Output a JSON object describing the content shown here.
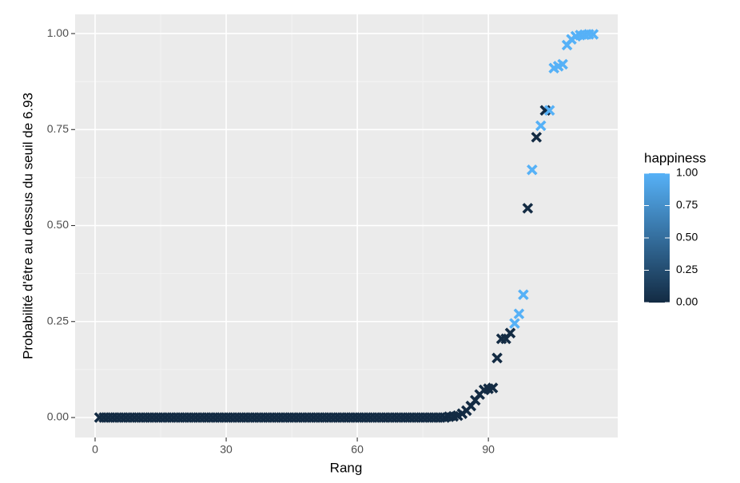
{
  "chart_data": {
    "type": "scatter",
    "x_label": "Rang",
    "y_label": "Probabilité d'être au dessus du seuil de 6.93",
    "legend_title": "happiness",
    "x": [
      1,
      2,
      3,
      4,
      5,
      6,
      7,
      8,
      9,
      10,
      11,
      12,
      13,
      14,
      15,
      16,
      17,
      18,
      19,
      20,
      21,
      22,
      23,
      24,
      25,
      26,
      27,
      28,
      29,
      30,
      31,
      32,
      33,
      34,
      35,
      36,
      37,
      38,
      39,
      40,
      41,
      42,
      43,
      44,
      45,
      46,
      47,
      48,
      49,
      50,
      51,
      52,
      53,
      54,
      55,
      56,
      57,
      58,
      59,
      60,
      61,
      62,
      63,
      64,
      65,
      66,
      67,
      68,
      69,
      70,
      71,
      72,
      73,
      74,
      75,
      76,
      77,
      78,
      79,
      80,
      81,
      82,
      83,
      84,
      85,
      86,
      87,
      88,
      89,
      90,
      91,
      92,
      93,
      94,
      95,
      96,
      97,
      98,
      99,
      100,
      101,
      102,
      103,
      104,
      105,
      106,
      107,
      108,
      109,
      110,
      111,
      112,
      113,
      114
    ],
    "values": [
      0,
      0,
      0,
      0,
      0,
      0,
      0,
      0,
      0,
      0,
      0,
      0,
      0,
      0,
      0,
      0,
      0,
      0,
      0,
      0,
      0,
      0,
      0,
      0,
      0,
      0,
      0,
      0,
      0,
      0,
      0,
      0,
      0,
      0,
      0,
      0,
      0,
      0,
      0,
      0,
      0,
      0,
      0,
      0,
      0,
      0,
      0,
      0,
      0,
      0,
      0,
      0,
      0,
      0,
      0,
      0,
      0,
      0,
      0,
      0,
      0,
      0,
      0,
      0,
      0,
      0,
      0,
      0,
      0,
      0,
      0,
      0,
      0,
      0,
      0,
      0,
      0,
      0,
      0,
      0,
      0.002,
      0.003,
      0.005,
      0.01,
      0.018,
      0.03,
      0.045,
      0.06,
      0.072,
      0.075,
      0.077,
      0.155,
      0.205,
      0.205,
      0.22,
      0.245,
      0.27,
      0.32,
      0.545,
      0.645,
      0.73,
      0.76,
      0.8,
      0.8,
      0.91,
      0.915,
      0.92,
      0.97,
      0.985,
      0.993,
      0.996,
      0.997,
      0.998,
      0.998
    ],
    "color_values": [
      0,
      0,
      0,
      0,
      0,
      0,
      0,
      0,
      0,
      0,
      0,
      0,
      0,
      0,
      0,
      0,
      0,
      0,
      0,
      0,
      0,
      0,
      0,
      0,
      0,
      0,
      0,
      0,
      0,
      0,
      0,
      0,
      0,
      0,
      0,
      0,
      0,
      0,
      0,
      0,
      0,
      0,
      0,
      0,
      0,
      0,
      0,
      0,
      0,
      0,
      0,
      0,
      0,
      0,
      0,
      0,
      0,
      0,
      0,
      0,
      0,
      0,
      0,
      0,
      0,
      0,
      0,
      0,
      0,
      0,
      0,
      0,
      0,
      0,
      0,
      0,
      0,
      0,
      0,
      0,
      0,
      0,
      0,
      0,
      0,
      0,
      0,
      0,
      0,
      0,
      0,
      0,
      0,
      0,
      0,
      1,
      1,
      1,
      0,
      1,
      0,
      1,
      0,
      1,
      1,
      1,
      1,
      1,
      1,
      1,
      1,
      1,
      1,
      1
    ],
    "color_low": "#132B43",
    "color_high": "#56B1F7",
    "clim": [
      0,
      1
    ],
    "cticks": [
      {
        "value": 0,
        "label": "0.00"
      },
      {
        "value": 0.25,
        "label": "0.25"
      },
      {
        "value": 0.5,
        "label": "0.50"
      },
      {
        "value": 0.75,
        "label": "0.75"
      },
      {
        "value": 1,
        "label": "1.00"
      }
    ],
    "xlim": [
      -4.57,
      119.6
    ],
    "xticks": [
      0,
      30,
      60,
      90
    ],
    "ylim": [
      -0.052,
      1.05
    ],
    "yticks": [
      {
        "value": 0,
        "label": "0.00"
      },
      {
        "value": 0.25,
        "label": "0.25"
      },
      {
        "value": 0.5,
        "label": "0.50"
      },
      {
        "value": 0.75,
        "label": "0.75"
      },
      {
        "value": 1,
        "label": "1.00"
      }
    ],
    "grid": true
  }
}
